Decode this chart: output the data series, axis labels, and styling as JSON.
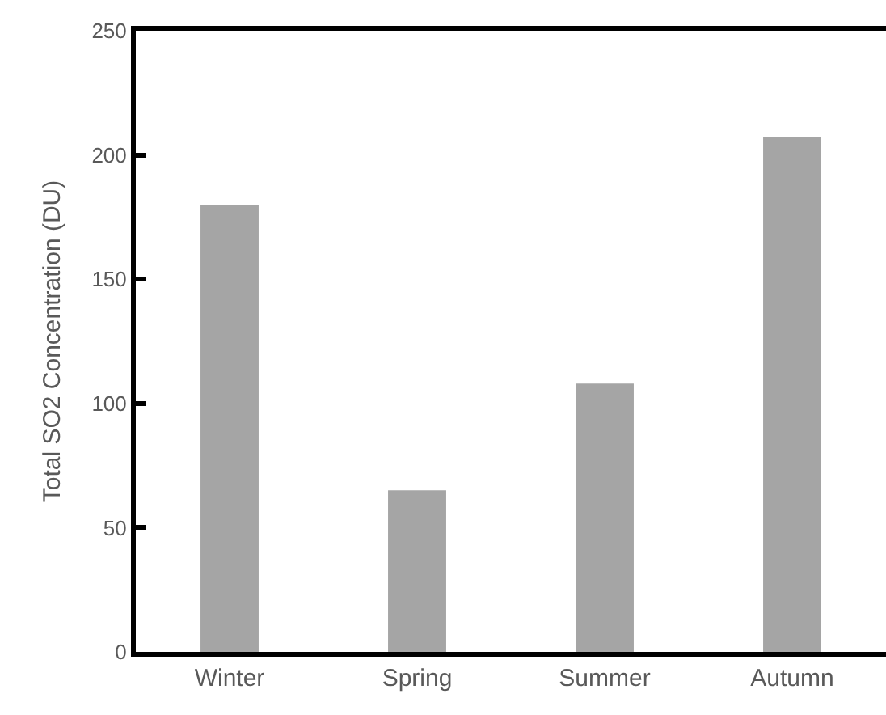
{
  "chart_data": {
    "type": "bar",
    "ylabel": "Total SO2 Concentration (DU)",
    "categories": [
      "Winter",
      "Spring",
      "Summer",
      "Autumn"
    ],
    "values": [
      180,
      65,
      108,
      207
    ],
    "color": "#a5a5a5",
    "ylim": [
      0,
      250
    ],
    "yticks": [
      0,
      50,
      100,
      150,
      200,
      250
    ]
  }
}
